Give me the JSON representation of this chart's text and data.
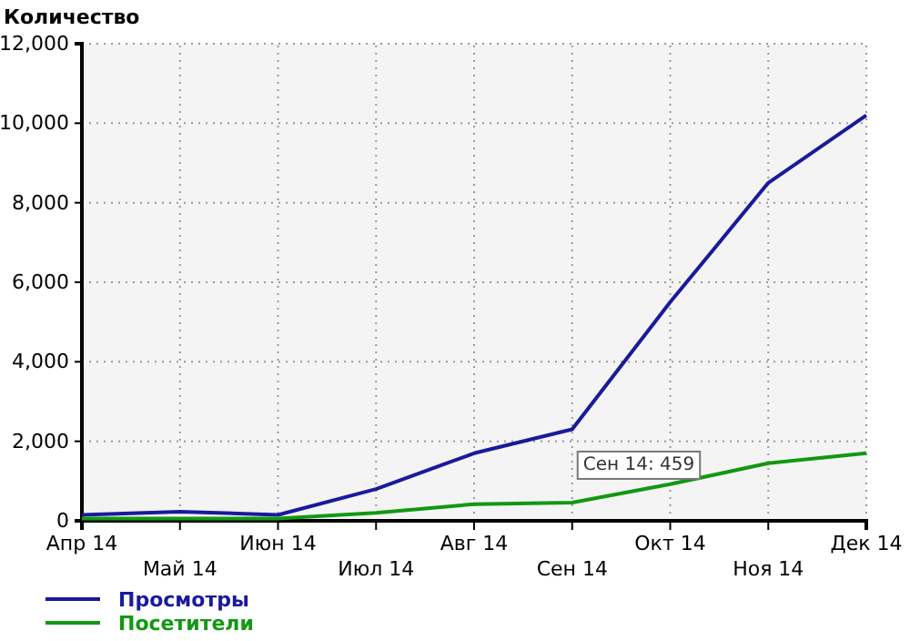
{
  "chart_data": {
    "type": "line",
    "ylabel": "Количество",
    "categories": [
      "Апр 14",
      "Май 14",
      "Июн 14",
      "Июл 14",
      "Авг 14",
      "Сен 14",
      "Окт 14",
      "Ноя 14",
      "Дек 14"
    ],
    "series": [
      {
        "name": "Просмотры",
        "color": "#1a1a9c",
        "values": [
          150,
          230,
          150,
          800,
          1700,
          2300,
          5500,
          8500,
          10200
        ]
      },
      {
        "name": "Посетители",
        "color": "#129812",
        "values": [
          60,
          60,
          60,
          200,
          420,
          459,
          920,
          1450,
          1700
        ]
      }
    ],
    "ylim": [
      0,
      12000
    ],
    "yticks": [
      {
        "value": 0,
        "label": "0"
      },
      {
        "value": 2000,
        "label": "2,000"
      },
      {
        "value": 4000,
        "label": "4,000"
      },
      {
        "value": 6000,
        "label": "6,000"
      },
      {
        "value": 8000,
        "label": "8,000"
      },
      {
        "value": 10000,
        "label": "10,000"
      },
      {
        "value": 12000,
        "label": "12,000"
      }
    ],
    "grid": true,
    "legend": "bottom left",
    "marker": "none",
    "line_style": "solid",
    "annotations": [
      {
        "text": "Сен 14: 459",
        "x": "Сен 14",
        "y": 459
      }
    ]
  }
}
